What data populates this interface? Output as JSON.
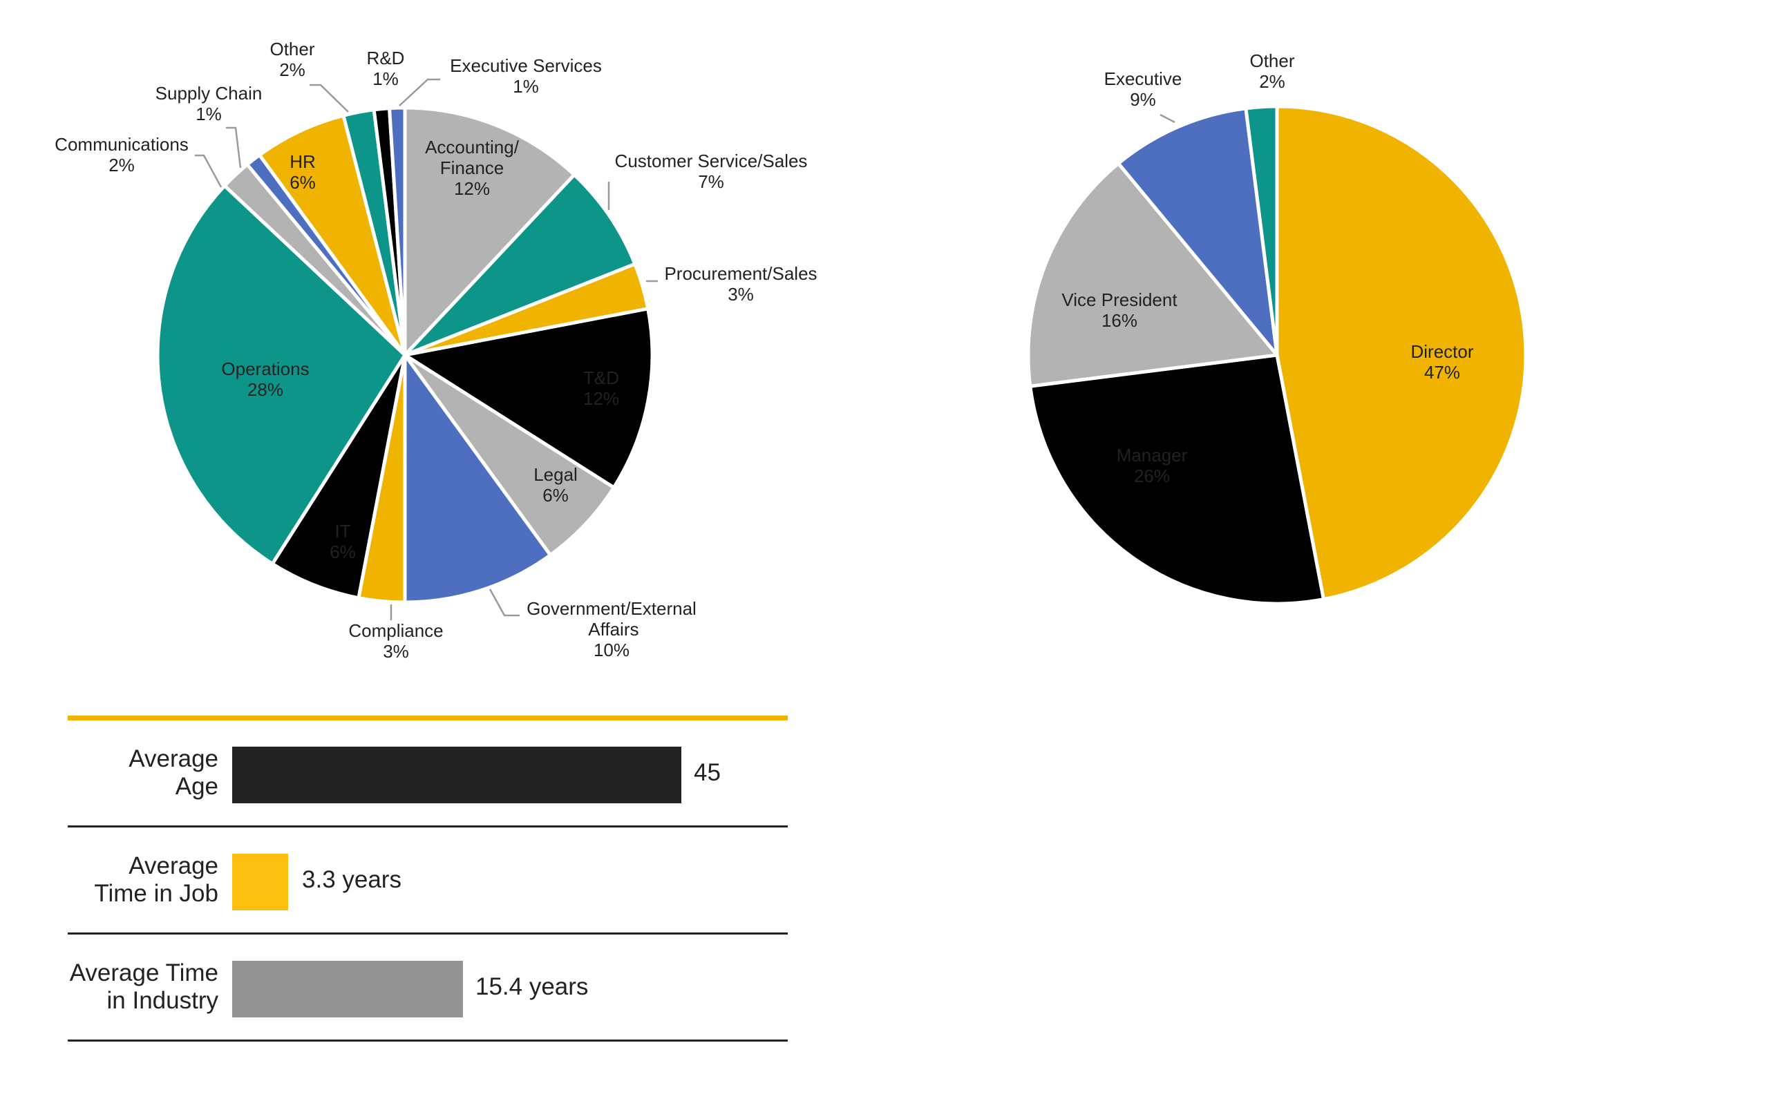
{
  "chart_data": [
    {
      "type": "pie",
      "slices": [
        {
          "label": "Accounting/Finance",
          "value": 12,
          "text": "12%",
          "color": "#b3b3b3"
        },
        {
          "label": "Customer Service/Sales",
          "value": 7,
          "text": "7%",
          "color": "#0e958a"
        },
        {
          "label": "Procurement/Sales",
          "value": 3,
          "text": "3%",
          "color": "#f0b400"
        },
        {
          "label": "T&D",
          "value": 12,
          "text": "12%",
          "color": "#000000"
        },
        {
          "label": "Legal",
          "value": 6,
          "text": "6%",
          "color": "#b3b3b3"
        },
        {
          "label": "Government/External Affairs",
          "value": 10,
          "text": "10%",
          "color": "#4e6fbf"
        },
        {
          "label": "Compliance",
          "value": 3,
          "text": "3%",
          "color": "#f0b400"
        },
        {
          "label": "IT",
          "value": 6,
          "text": "6%",
          "color": "#000000"
        },
        {
          "label": "Operations",
          "value": 28,
          "text": "28%",
          "color": "#0e958a"
        },
        {
          "label": "Communications",
          "value": 2,
          "text": "2%",
          "color": "#b3b3b3"
        },
        {
          "label": "Supply Chain",
          "value": 1,
          "text": "1%",
          "color": "#4e6fbf"
        },
        {
          "label": "HR",
          "value": 6,
          "text": "6%",
          "color": "#f0b400"
        },
        {
          "label": "Other",
          "value": 2,
          "text": "2%",
          "color": "#0e958a"
        },
        {
          "label": "R&D",
          "value": 1,
          "text": "1%",
          "color": "#000000"
        },
        {
          "label": "Executive Services",
          "value": 1,
          "text": "1%",
          "color": "#4e6fbf"
        }
      ]
    },
    {
      "type": "pie",
      "slices": [
        {
          "label": "Director",
          "value": 47,
          "text": "47%",
          "color": "#f0b400"
        },
        {
          "label": "Manager",
          "value": 26,
          "text": "26%",
          "color": "#000000"
        },
        {
          "label": "Vice President",
          "value": 16,
          "text": "16%",
          "color": "#b3b3b3"
        },
        {
          "label": "Executive",
          "value": 9,
          "text": "9%",
          "color": "#4e6fbf"
        },
        {
          "label": "Other",
          "value": 2,
          "text": "2%",
          "color": "#0e958a"
        }
      ]
    },
    {
      "type": "bar",
      "orientation": "horizontal",
      "categories": [
        "Average\nAge",
        "Average\nTime in Job",
        "Average Time\nin Industry"
      ],
      "values": [
        45,
        3.3,
        15.4
      ],
      "value_labels": [
        "45",
        "3.3 years",
        "15.4 years"
      ],
      "colors": [
        "#222222",
        "#fbbf12",
        "#939393"
      ],
      "accent": "#f0b400"
    }
  ]
}
